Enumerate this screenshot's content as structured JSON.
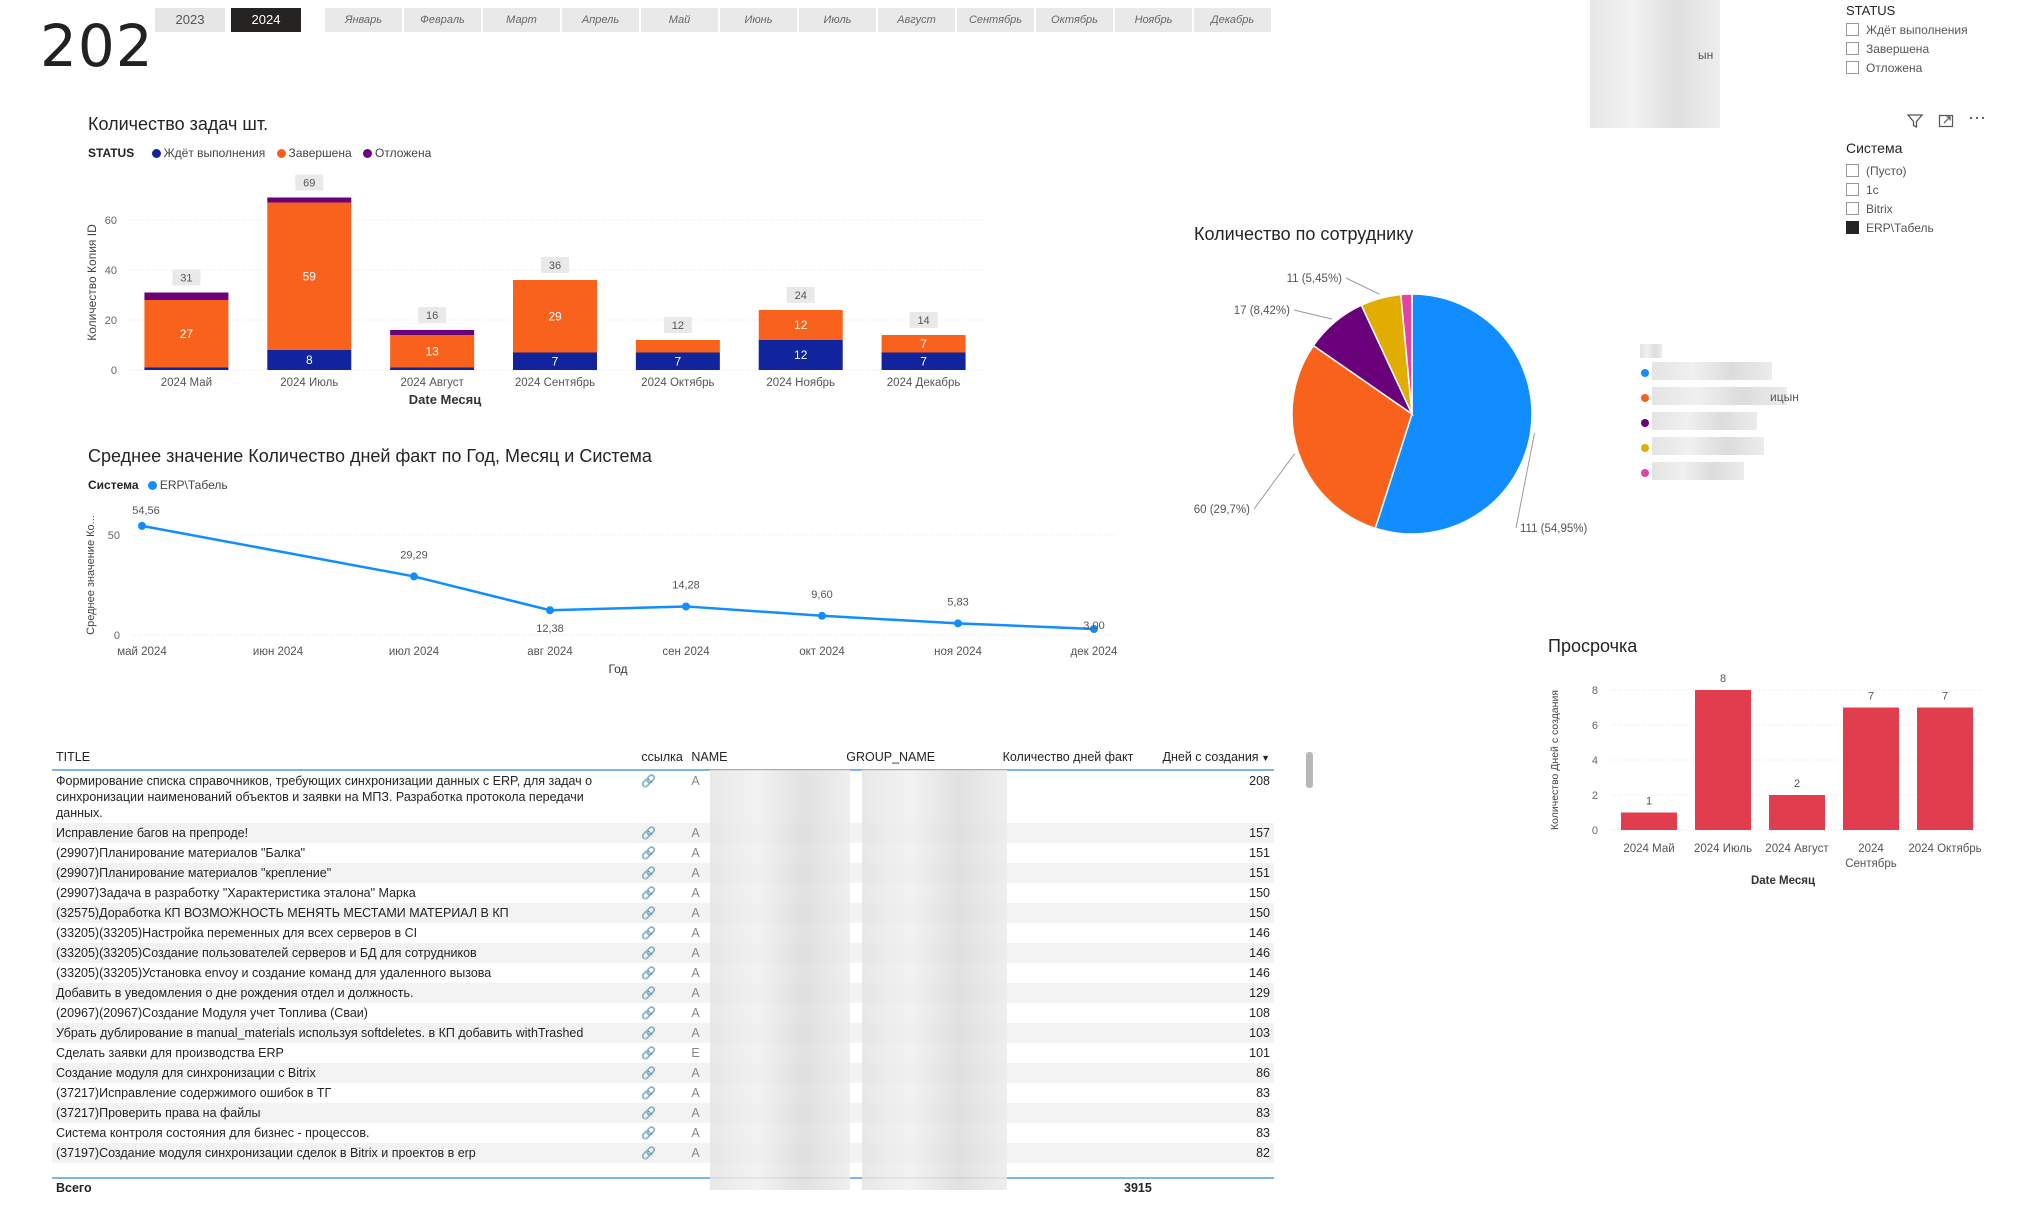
{
  "kpi": {
    "value": "202"
  },
  "years": [
    {
      "label": "2023",
      "active": false
    },
    {
      "label": "2024",
      "active": true
    }
  ],
  "months": [
    "Январь",
    "Февраль",
    "Март",
    "Апрель",
    "Май",
    "Июнь",
    "Июль",
    "Август",
    "Сентябрь",
    "Октябрь",
    "Ноябрь",
    "Декабрь"
  ],
  "status_slicer": {
    "title": "STATUS",
    "items": [
      {
        "label": "Ждёт выполнения",
        "checked": false
      },
      {
        "label": "Завершена",
        "checked": false
      },
      {
        "label": "Отложена",
        "checked": false
      }
    ],
    "partial_text": "ын"
  },
  "system_slicer": {
    "title": "Система",
    "items": [
      {
        "label": "(Пусто)",
        "checked": false
      },
      {
        "label": "1c",
        "checked": false
      },
      {
        "label": "Bitrix",
        "checked": false
      },
      {
        "label": "ERP\\Табель",
        "checked": true
      }
    ]
  },
  "icons": {
    "filter": "filter-icon",
    "focus": "focus-mode-icon",
    "more": "more-options-icon"
  },
  "colors": {
    "blue": "#12239e",
    "orange": "#f8621c",
    "purple": "#6b007b",
    "light_blue": "#118dff",
    "yellow": "#e1ad00",
    "pink": "#e044a7",
    "red": "#e23c4f"
  },
  "chart_data": [
    {
      "type": "bar",
      "stacked": true,
      "title": "Количество задач шт.",
      "legend_title": "STATUS",
      "xlabel": "Date Месяц",
      "ylabel": "Количество Копия ID",
      "ylim": [
        0,
        70
      ],
      "yticks": [
        0,
        20,
        40,
        60
      ],
      "categories": [
        "2024 Май",
        "2024 Июль",
        "2024 Август",
        "2024 Сентябрь",
        "2024 Октябрь",
        "2024 Ноябрь",
        "2024 Декабрь"
      ],
      "series": [
        {
          "name": "Ждёт выполнения",
          "color": "#12239e",
          "values": [
            1,
            8,
            1,
            7,
            7,
            12,
            7
          ],
          "labels": [
            "",
            "8",
            "",
            "7",
            "7",
            "12",
            "7"
          ]
        },
        {
          "name": "Завершена",
          "color": "#f8621c",
          "values": [
            27,
            59,
            13,
            29,
            5,
            12,
            7
          ],
          "labels": [
            "27",
            "59",
            "13",
            "29",
            "",
            "12",
            "7"
          ]
        },
        {
          "name": "Отложена",
          "color": "#6b007b",
          "values": [
            3,
            2,
            2,
            0,
            0,
            0,
            0
          ],
          "labels": [
            "",
            "",
            "",
            "",
            "",
            "",
            ""
          ]
        }
      ],
      "totals": [
        31,
        69,
        16,
        36,
        12,
        24,
        14
      ]
    },
    {
      "type": "line",
      "title": "Среднее значение Количество дней факт по Год, Месяц и Система",
      "legend_title": "Система",
      "xlabel": "Год",
      "ylabel": "Среднее значение Ко...",
      "ylim": [
        0,
        60
      ],
      "yticks": [
        0,
        50
      ],
      "x": [
        "май 2024",
        "июн 2024",
        "июл 2024",
        "авг 2024",
        "сен 2024",
        "окт 2024",
        "ноя 2024",
        "дек 2024"
      ],
      "series": [
        {
          "name": "ERP\\Табель",
          "color": "#118dff",
          "points": [
            {
              "x": "май 2024",
              "y": 54.56,
              "label": "54,56"
            },
            {
              "x": "июл 2024",
              "y": 29.29,
              "label": "29,29"
            },
            {
              "x": "авг 2024",
              "y": 12.38,
              "label": "12,38"
            },
            {
              "x": "сен 2024",
              "y": 14.28,
              "label": "14,28"
            },
            {
              "x": "окт 2024",
              "y": 9.6,
              "label": "9,60"
            },
            {
              "x": "ноя 2024",
              "y": 5.83,
              "label": "5,83"
            },
            {
              "x": "дек 2024",
              "y": 3.0,
              "label": "3,00"
            }
          ]
        }
      ]
    },
    {
      "type": "pie",
      "title": "Количество по сотруднику",
      "slices": [
        {
          "value": 111,
          "label": "111 (54,95%)",
          "color": "#118dff"
        },
        {
          "value": 60,
          "label": "60 (29,7%)",
          "color": "#f8621c"
        },
        {
          "value": 17,
          "label": "17 (8,42%)",
          "color": "#6b007b"
        },
        {
          "value": 11,
          "label": "11 (5,45%)",
          "color": "#e1ad00"
        },
        {
          "value": 3,
          "label": "",
          "color": "#e044a7"
        }
      ],
      "legend_partial": [
        "ицын"
      ]
    },
    {
      "type": "bar",
      "title": "Просрочка",
      "xlabel": "Date Месяц",
      "ylabel": "Количество Дней с создания",
      "ylim": [
        0,
        8
      ],
      "yticks": [
        0,
        2,
        4,
        6,
        8
      ],
      "categories": [
        "2024 Май",
        "2024 Июль",
        "2024 Август",
        "2024 Сентябрь",
        "2024 Октябрь"
      ],
      "values": [
        1,
        8,
        2,
        7,
        7
      ],
      "color": "#e23c4f"
    }
  ],
  "table": {
    "headers": [
      "TITLE",
      "ссылка",
      "NAME",
      "GROUP_NAME",
      "Количество дней факт",
      "Дней с создания"
    ],
    "rows": [
      {
        "title": "Формирование списка справочников, требующих синхронизации данных с ERP, для задач о синхронизации наименований объектов и заявки на МПЗ. Разработка протокола передачи данных.",
        "name": "А",
        "days": "208"
      },
      {
        "title": "Исправление багов на препроде!",
        "name": "А",
        "days": "157"
      },
      {
        "title": "(29907)Планирование материалов \"Балка\"",
        "name": "А",
        "days": "151"
      },
      {
        "title": "(29907)Планирование материалов \"крепление\"",
        "name": "А",
        "days": "151"
      },
      {
        "title": "(29907)Задача в разработку \"Характеристика эталона\" Марка",
        "name": "А",
        "days": "150"
      },
      {
        "title": "(32575)Доработка КП ВОЗМОЖНОСТЬ МЕНЯТЬ МЕСТАМИ МАТЕРИАЛ В КП",
        "name": "А",
        "days": "150"
      },
      {
        "title": "(33205)(33205)Настройка переменных для всех серверов в CI",
        "name": "А",
        "days": "146"
      },
      {
        "title": "(33205)(33205)Создание пользователей серверов и БД для сотрудников",
        "name": "А",
        "days": "146"
      },
      {
        "title": "(33205)(33205)Установка envoy и создание команд для удаленного вызова",
        "name": "А",
        "days": "146"
      },
      {
        "title": "Добавить в уведомления о дне рождения отдел и должность.",
        "name": "А",
        "days": "129"
      },
      {
        "title": "(20967)(20967)Создание Модуля учет Топлива (Сваи)",
        "name": "А",
        "days": "108"
      },
      {
        "title": "Убрать дублирование в manual_materials используя softdeletes. в КП добавить withTrashed",
        "name": "А",
        "days": "103"
      },
      {
        "title": "Сделать заявки для производства ERP",
        "name": "Е",
        "days": "101"
      },
      {
        "title": "Создание модуля для синхронизации с Bitrix",
        "name": "А",
        "days": "86"
      },
      {
        "title": "(37217)Исправление содержимого ошибок в ТГ",
        "name": "А",
        "days": "83"
      },
      {
        "title": "(37217)Проверить права на файлы",
        "name": "А",
        "days": "83"
      },
      {
        "title": "Система контроля состояния для бизнес - процессов.",
        "name": "А",
        "days": "83"
      },
      {
        "title": "(37197)Создание модуля синхронизации сделок в Bitrix и проектов в erp",
        "name": "А",
        "days": "82"
      }
    ],
    "total_label": "Всего",
    "total_value": "3915"
  }
}
